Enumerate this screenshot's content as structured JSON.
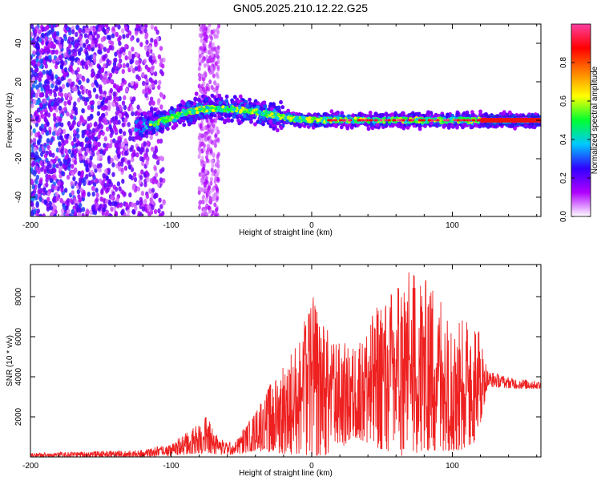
{
  "title": "GN05.2025.210.12.22.G25",
  "chart_data": [
    {
      "type": "scatter",
      "name": "spectrogram",
      "xlabel": "Height of straight line (km)",
      "ylabel": "Frequency (Hz)",
      "xlim": [
        -200,
        163
      ],
      "ylim": [
        -50,
        50
      ],
      "x_ticks": [
        -200,
        -100,
        0,
        100
      ],
      "y_ticks": [
        -40,
        -20,
        0,
        20,
        40
      ],
      "colorbar": {
        "label": "Normalized spectral amplitude",
        "range": [
          0,
          1
        ],
        "ticks": [
          "0.0",
          "0.2",
          "0.4",
          "0.6",
          "0.8"
        ],
        "colormap": [
          "#ffffff",
          "#b000ff",
          "#3000ff",
          "#00c8ff",
          "#00ff30",
          "#ffff00",
          "#ff8000",
          "#ff0000",
          "#ff40a0"
        ]
      },
      "ridge": [
        {
          "x": -120,
          "freq": -3
        },
        {
          "x": -105,
          "freq": 0
        },
        {
          "x": -90,
          "freq": 4
        },
        {
          "x": -75,
          "freq": 6
        },
        {
          "x": -60,
          "freq": 6
        },
        {
          "x": -45,
          "freq": 5
        },
        {
          "x": -30,
          "freq": 3
        },
        {
          "x": -15,
          "freq": 1
        },
        {
          "x": 0,
          "freq": 0
        },
        {
          "x": 20,
          "freq": 0
        },
        {
          "x": 60,
          "freq": 0
        },
        {
          "x": 100,
          "freq": 0
        },
        {
          "x": 160,
          "freq": 0
        }
      ]
    },
    {
      "type": "line",
      "name": "snr",
      "xlabel": "Height of straight line (km)",
      "ylabel": "SNR (10 * v/v)",
      "xlim": [
        -200,
        163
      ],
      "ylim": [
        0,
        9600
      ],
      "x_ticks": [
        -200,
        -100,
        0,
        100
      ],
      "y_ticks": [
        2000,
        4000,
        6000,
        8000
      ],
      "color": "#ee2020",
      "envelope": [
        {
          "x": -200,
          "lo": 0,
          "hi": 200
        },
        {
          "x": -120,
          "lo": 0,
          "hi": 350
        },
        {
          "x": -100,
          "lo": 50,
          "hi": 700
        },
        {
          "x": -85,
          "lo": 150,
          "hi": 1400
        },
        {
          "x": -75,
          "lo": 200,
          "hi": 2100
        },
        {
          "x": -65,
          "lo": 100,
          "hi": 900
        },
        {
          "x": -55,
          "lo": 100,
          "hi": 700
        },
        {
          "x": -40,
          "lo": 300,
          "hi": 2400
        },
        {
          "x": -25,
          "lo": 200,
          "hi": 4200
        },
        {
          "x": -10,
          "lo": 100,
          "hi": 5800
        },
        {
          "x": 0,
          "lo": 50,
          "hi": 8200
        },
        {
          "x": 15,
          "lo": 100,
          "hi": 6000
        },
        {
          "x": 30,
          "lo": 1000,
          "hi": 5500
        },
        {
          "x": 45,
          "lo": 500,
          "hi": 7400
        },
        {
          "x": 65,
          "lo": 0,
          "hi": 9400
        },
        {
          "x": 85,
          "lo": 300,
          "hi": 8800
        },
        {
          "x": 105,
          "lo": 300,
          "hi": 7000
        },
        {
          "x": 118,
          "lo": 800,
          "hi": 6800
        },
        {
          "x": 125,
          "lo": 3500,
          "hi": 4300
        },
        {
          "x": 145,
          "lo": 3400,
          "hi": 3900
        },
        {
          "x": 163,
          "lo": 3400,
          "hi": 3800
        }
      ]
    }
  ]
}
